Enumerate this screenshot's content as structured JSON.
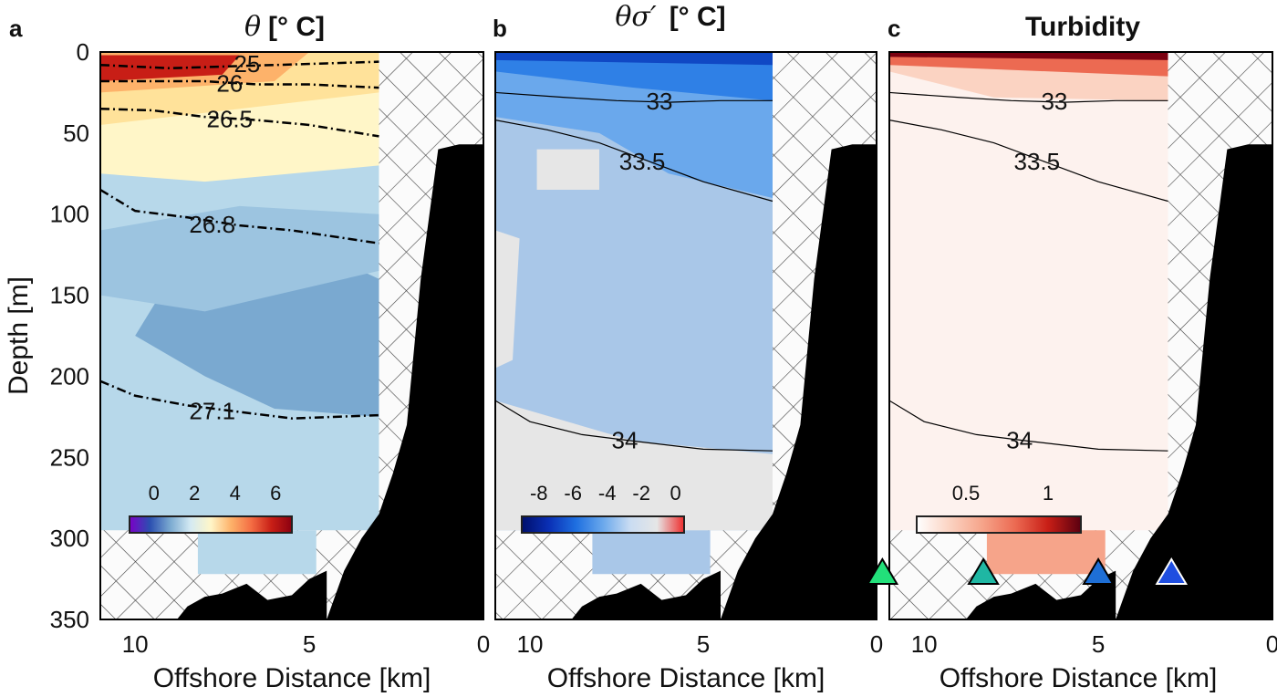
{
  "colors": {
    "hatch_bg": "#fbfbfb",
    "hatch_line": "#444444",
    "land": "#000000",
    "frame": "#000000",
    "theta_field": [
      "#b7d8ea",
      "#9cc4e0",
      "#7aa9d0",
      "#d4eaf3",
      "#fff6c8",
      "#ffe29a",
      "#fdb26a",
      "#f46d43",
      "#c81e16",
      "#8b0010"
    ],
    "anom_field": [
      "#a9c7e8",
      "#e6e6e6",
      "#6aa8ec",
      "#2f80e6",
      "#1048c4",
      "#ee2c2c"
    ],
    "turb_field": [
      "#fdf2ee",
      "#fbd3c2",
      "#f6a48a",
      "#ec6a52",
      "#c81e16",
      "#7a0010"
    ],
    "marker_colors": [
      "#22e07a",
      "#1fb7a3",
      "#1e6fd6",
      "#1f4ee0"
    ]
  },
  "chart_data": [
    {
      "panel": "a",
      "type": "heatmap",
      "title_symbol": "θ",
      "title_units": "[° C]",
      "xlabel": "Offshore Distance [km]",
      "ylabel": "Depth [m]",
      "xlim": [
        11,
        0
      ],
      "ylim": [
        0,
        350
      ],
      "xticks": [
        "10",
        "5",
        "0"
      ],
      "yticks": [
        "0",
        "50",
        "100",
        "150",
        "200",
        "250",
        "300",
        "350"
      ],
      "colorbar": {
        "range": [
          -1.2,
          6.8
        ],
        "ticks": [
          "0",
          "2",
          "4",
          "6"
        ]
      },
      "contours": [
        {
          "label": "25",
          "depths": [
            [
              11,
              8
            ],
            [
              9,
              10
            ],
            [
              7.5,
              9
            ],
            [
              6,
              8
            ],
            [
              4.5,
              7
            ],
            [
              3,
              6
            ]
          ]
        },
        {
          "label": "26",
          "depths": [
            [
              11,
              18
            ],
            [
              9.5,
              18
            ],
            [
              8,
              18
            ],
            [
              6.5,
              20
            ],
            [
              5,
              20
            ],
            [
              3,
              22
            ]
          ]
        },
        {
          "label": "26.5",
          "depths": [
            [
              11,
              35
            ],
            [
              9.5,
              36
            ],
            [
              8,
              40
            ],
            [
              6.5,
              42
            ],
            [
              5,
              45
            ],
            [
              3,
              52
            ]
          ]
        },
        {
          "label": "26.8",
          "depths": [
            [
              11,
              85
            ],
            [
              10,
              98
            ],
            [
              8.5,
              102
            ],
            [
              7,
              107
            ],
            [
              5.5,
              110
            ],
            [
              3,
              118
            ]
          ]
        },
        {
          "label": "27.1",
          "depths": [
            [
              11,
              203
            ],
            [
              10,
              212
            ],
            [
              8.5,
              218
            ],
            [
              7,
              222
            ],
            [
              5.5,
              226
            ],
            [
              3,
              224
            ]
          ]
        }
      ]
    },
    {
      "panel": "b",
      "type": "heatmap",
      "title_symbol": "θσ′",
      "title_units": "[° C]",
      "xlabel": "Offshore Distance [km]",
      "xlim": [
        11,
        0
      ],
      "ylim": [
        0,
        350
      ],
      "xticks": [
        "10",
        "5",
        "0"
      ],
      "colorbar": {
        "range": [
          -9,
          0.5
        ],
        "ticks": [
          "-8",
          "-6",
          "-4",
          "-2",
          "0"
        ]
      },
      "contours": [
        {
          "label": "33",
          "depths": [
            [
              11,
              25
            ],
            [
              9,
              28
            ],
            [
              7.5,
              30
            ],
            [
              6,
              31
            ],
            [
              4.5,
              30
            ],
            [
              3,
              30
            ]
          ]
        },
        {
          "label": "33.5",
          "depths": [
            [
              11,
              42
            ],
            [
              9.5,
              48
            ],
            [
              8,
              56
            ],
            [
              6.5,
              68
            ],
            [
              5,
              80
            ],
            [
              3,
              92
            ]
          ]
        },
        {
          "label": "34",
          "depths": [
            [
              11,
              215
            ],
            [
              10,
              228
            ],
            [
              8.5,
              236
            ],
            [
              7,
              240
            ],
            [
              5,
              245
            ],
            [
              3,
              246
            ]
          ]
        }
      ]
    },
    {
      "panel": "c",
      "type": "heatmap",
      "title": "Turbidity",
      "xlabel": "Offshore Distance [km]",
      "xlim": [
        11,
        0
      ],
      "ylim": [
        0,
        350
      ],
      "xticks": [
        "10",
        "5",
        "0"
      ],
      "colorbar": {
        "range": [
          0.2,
          1.2
        ],
        "ticks": [
          "0.5",
          "1"
        ]
      },
      "contours": [
        {
          "label": "33",
          "depths": [
            [
              11,
              25
            ],
            [
              9,
              28
            ],
            [
              7.5,
              30
            ],
            [
              6,
              31
            ],
            [
              4.5,
              30
            ],
            [
              3,
              30
            ]
          ]
        },
        {
          "label": "33.5",
          "depths": [
            [
              11,
              42
            ],
            [
              9.5,
              48
            ],
            [
              8,
              56
            ],
            [
              6.5,
              68
            ],
            [
              5,
              80
            ],
            [
              3,
              92
            ]
          ]
        },
        {
          "label": "34",
          "depths": [
            [
              11,
              215
            ],
            [
              10,
              228
            ],
            [
              8.5,
              236
            ],
            [
              7,
              240
            ],
            [
              5,
              245
            ],
            [
              3,
              246
            ]
          ]
        }
      ],
      "station_markers_km": [
        11.2,
        8.3,
        5.0,
        2.9
      ]
    }
  ],
  "bathymetry": {
    "shore_profile": [
      [
        4.5,
        350
      ],
      [
        4.0,
        320
      ],
      [
        3.5,
        300
      ],
      [
        3.0,
        285
      ],
      [
        2.6,
        260
      ],
      [
        2.2,
        230
      ],
      [
        1.8,
        140
      ],
      [
        1.3,
        60
      ],
      [
        0.7,
        57
      ],
      [
        0,
        57
      ]
    ],
    "seafloor_profile": [
      [
        8.8,
        350
      ],
      [
        8.5,
        342
      ],
      [
        8.0,
        336
      ],
      [
        7.5,
        334
      ],
      [
        6.8,
        328
      ],
      [
        6.2,
        338
      ],
      [
        5.5,
        335
      ],
      [
        5.0,
        325
      ],
      [
        4.5,
        320
      ]
    ],
    "cast_bottom_depth": 295,
    "deep_cast_km": [
      8.2,
      4.8
    ],
    "deep_cast_depth": 322,
    "cast_right_km": 3.0
  }
}
